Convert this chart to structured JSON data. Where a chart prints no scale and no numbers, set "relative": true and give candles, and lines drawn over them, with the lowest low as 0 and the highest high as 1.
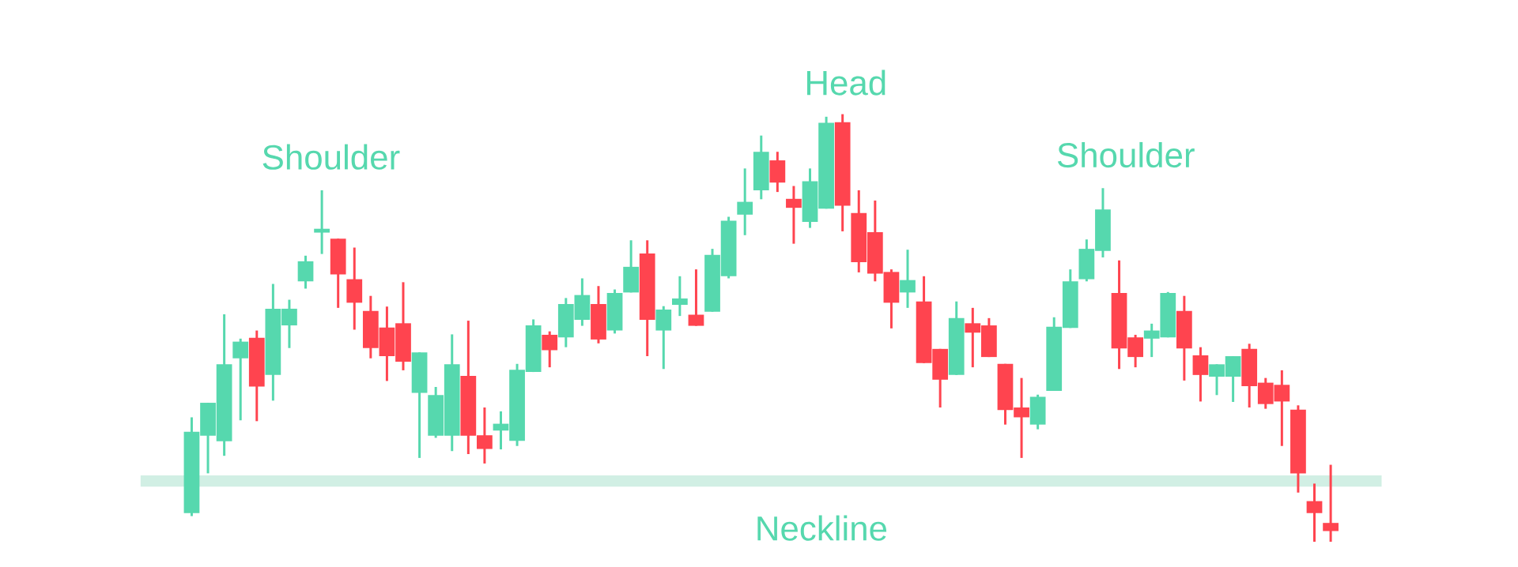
{
  "chart_data": {
    "type": "candlestick",
    "relative": true,
    "categories": [
      null,
      null,
      null,
      null,
      null,
      null,
      null,
      null,
      null,
      null,
      null,
      null,
      null,
      null,
      null,
      null,
      null,
      null,
      null,
      null,
      null,
      null,
      null,
      null,
      null,
      null,
      null,
      null,
      null,
      null,
      null,
      null,
      null,
      null,
      null,
      null,
      null,
      null,
      null,
      null,
      null,
      null,
      null,
      null,
      null,
      null,
      null,
      null,
      null,
      null,
      null,
      null,
      null,
      null,
      null,
      null,
      null,
      null,
      null,
      null,
      null,
      null,
      null,
      null,
      null,
      null,
      null,
      null,
      null,
      null,
      null
    ],
    "ohlc": [
      [
        0.067,
        0.291,
        0.06,
        0.257
      ],
      [
        0.248,
        0.325,
        0.16,
        0.325
      ],
      [
        0.235,
        0.532,
        0.201,
        0.415
      ],
      [
        0.429,
        0.475,
        0.284,
        0.468
      ],
      [
        0.477,
        0.494,
        0.282,
        0.363
      ],
      [
        0.39,
        0.603,
        0.33,
        0.545
      ],
      [
        0.506,
        0.566,
        0.453,
        0.545
      ],
      [
        0.609,
        0.669,
        0.592,
        0.656
      ],
      [
        0.723,
        0.822,
        0.673,
        0.732
      ],
      [
        0.709,
        0.709,
        0.547,
        0.625
      ],
      [
        0.614,
        0.688,
        0.496,
        0.559
      ],
      [
        0.54,
        0.575,
        0.429,
        0.453
      ],
      [
        0.501,
        0.55,
        0.376,
        0.434
      ],
      [
        0.511,
        0.607,
        0.401,
        0.421
      ],
      [
        0.348,
        0.443,
        0.196,
        0.443
      ],
      [
        0.248,
        0.362,
        0.243,
        0.343
      ],
      [
        0.248,
        0.485,
        0.212,
        0.415
      ],
      [
        0.388,
        0.517,
        0.205,
        0.248
      ],
      [
        0.249,
        0.314,
        0.183,
        0.217
      ],
      [
        0.26,
        0.305,
        0.216,
        0.276
      ],
      [
        0.236,
        0.416,
        0.224,
        0.402
      ],
      [
        0.397,
        0.52,
        0.397,
        0.506
      ],
      [
        0.484,
        0.492,
        0.408,
        0.448
      ],
      [
        0.478,
        0.57,
        0.455,
        0.556
      ],
      [
        0.519,
        0.616,
        0.505,
        0.577
      ],
      [
        0.556,
        0.598,
        0.464,
        0.473
      ],
      [
        0.494,
        0.59,
        0.487,
        0.582
      ],
      [
        0.583,
        0.705,
        0.583,
        0.643
      ],
      [
        0.674,
        0.705,
        0.434,
        0.519
      ],
      [
        0.494,
        0.551,
        0.404,
        0.543
      ],
      [
        0.554,
        0.621,
        0.528,
        0.569
      ],
      [
        0.531,
        0.637,
        0.505,
        0.505
      ],
      [
        0.538,
        0.685,
        0.538,
        0.671
      ],
      [
        0.621,
        0.76,
        0.616,
        0.751
      ],
      [
        0.765,
        0.873,
        0.717,
        0.795
      ],
      [
        0.822,
        0.95,
        0.801,
        0.912
      ],
      [
        0.892,
        0.912,
        0.818,
        0.84
      ],
      [
        0.802,
        0.832,
        0.697,
        0.781
      ],
      [
        0.748,
        0.873,
        0.734,
        0.843
      ],
      [
        0.779,
        0.994,
        0.779,
        0.98
      ],
      [
        0.981,
        1.0,
        0.726,
        0.786
      ],
      [
        0.769,
        0.822,
        0.63,
        0.654
      ],
      [
        0.724,
        0.798,
        0.609,
        0.627
      ],
      [
        0.631,
        0.637,
        0.499,
        0.559
      ],
      [
        0.583,
        0.683,
        0.547,
        0.612
      ],
      [
        0.562,
        0.621,
        0.418,
        0.418
      ],
      [
        0.451,
        0.451,
        0.314,
        0.379
      ],
      [
        0.39,
        0.562,
        0.39,
        0.523
      ],
      [
        0.511,
        0.547,
        0.408,
        0.489
      ],
      [
        0.506,
        0.523,
        0.432,
        0.432
      ],
      [
        0.416,
        0.416,
        0.274,
        0.308
      ],
      [
        0.314,
        0.383,
        0.196,
        0.291
      ],
      [
        0.274,
        0.344,
        0.263,
        0.339
      ],
      [
        0.353,
        0.525,
        0.353,
        0.503
      ],
      [
        0.5,
        0.637,
        0.5,
        0.609
      ],
      [
        0.614,
        0.707,
        0.609,
        0.685
      ],
      [
        0.68,
        0.827,
        0.665,
        0.777
      ],
      [
        0.582,
        0.658,
        0.404,
        0.452
      ],
      [
        0.478,
        0.484,
        0.408,
        0.432
      ],
      [
        0.475,
        0.51,
        0.432,
        0.494
      ],
      [
        0.478,
        0.584,
        0.478,
        0.582
      ],
      [
        0.54,
        0.575,
        0.377,
        0.452
      ],
      [
        0.436,
        0.455,
        0.328,
        0.39
      ],
      [
        0.386,
        0.415,
        0.343,
        0.415
      ],
      [
        0.386,
        0.434,
        0.327,
        0.434
      ],
      [
        0.451,
        0.463,
        0.314,
        0.364
      ],
      [
        0.372,
        0.383,
        0.311,
        0.322
      ],
      [
        0.367,
        0.401,
        0.224,
        0.328
      ],
      [
        0.309,
        0.319,
        0.115,
        0.16
      ],
      [
        0.095,
        0.136,
        0.0,
        0.067
      ],
      [
        0.044,
        0.18,
        0.0,
        0.025
      ]
    ],
    "colors": [
      "#56d8ae",
      "#56d8ae",
      "#56d8ae",
      "#56d8ae",
      "#ff444f",
      "#56d8ae",
      "#56d8ae",
      "#56d8ae",
      "#56d8ae",
      "#ff444f",
      "#ff444f",
      "#ff444f",
      "#ff444f",
      "#ff444f",
      "#56d8ae",
      "#56d8ae",
      "#56d8ae",
      "#ff444f",
      "#ff444f",
      "#56d8ae",
      "#56d8ae",
      "#56d8ae",
      "#ff444f",
      "#56d8ae",
      "#56d8ae",
      "#ff444f",
      "#56d8ae",
      "#56d8ae",
      "#ff444f",
      "#56d8ae",
      "#56d8ae",
      "#ff444f",
      "#56d8ae",
      "#56d8ae",
      "#56d8ae",
      "#56d8ae",
      "#ff444f",
      "#ff444f",
      "#56d8ae",
      "#56d8ae",
      "#ff444f",
      "#ff444f",
      "#ff444f",
      "#ff444f",
      "#56d8ae",
      "#ff444f",
      "#ff444f",
      "#56d8ae",
      "#ff444f",
      "#ff444f",
      "#ff444f",
      "#ff444f",
      "#56d8ae",
      "#56d8ae",
      "#56d8ae",
      "#56d8ae",
      "#56d8ae",
      "#ff444f",
      "#ff444f",
      "#56d8ae",
      "#56d8ae",
      "#ff444f",
      "#ff444f",
      "#56d8ae",
      "#56d8ae",
      "#ff444f",
      "#ff444f",
      "#ff444f",
      "#ff444f",
      "#ff444f",
      "#ff444f"
    ],
    "ref_lines": [
      {
        "axis": "y",
        "value": 0.142,
        "label": "Neckline",
        "color": "#d1efe4"
      }
    ],
    "annotations": [
      "Shoulder",
      "Head",
      "Shoulder"
    ]
  }
}
